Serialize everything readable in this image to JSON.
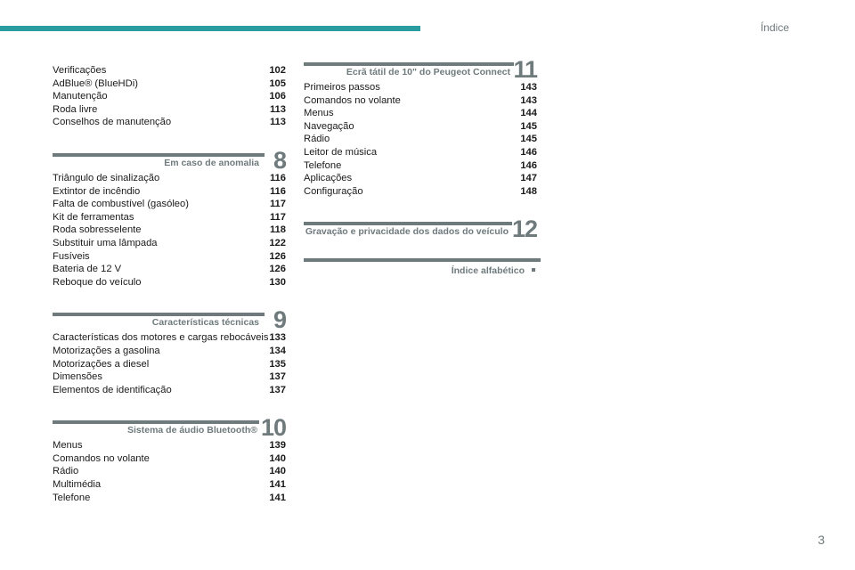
{
  "header": {
    "title": "Índice"
  },
  "page_number": "3",
  "left_top": [
    {
      "label": "Verificações",
      "page": "102"
    },
    {
      "label": "AdBlue® (BlueHDi)",
      "page": "105"
    },
    {
      "label": "Manutenção",
      "page": "106"
    },
    {
      "label": "Roda livre",
      "page": "113"
    },
    {
      "label": "Conselhos de manutenção",
      "page": "113"
    }
  ],
  "sections": [
    {
      "number": "8",
      "title": "Em caso de anomalia",
      "items": [
        {
          "label": "Triângulo de sinalização",
          "page": "116"
        },
        {
          "label": "Extintor de incêndio",
          "page": "116"
        },
        {
          "label": "Falta de combustível (gasóleo)",
          "page": "117"
        },
        {
          "label": "Kit de ferramentas",
          "page": "117"
        },
        {
          "label": "Roda sobresselente",
          "page": "118"
        },
        {
          "label": "Substituir uma lâmpada",
          "page": "122"
        },
        {
          "label": "Fusíveis",
          "page": "126"
        },
        {
          "label": "Bateria de 12 V",
          "page": "126"
        },
        {
          "label": "Reboque do veículo",
          "page": "130"
        }
      ]
    },
    {
      "number": "9",
      "title": "Características técnicas",
      "items": [
        {
          "label": "Características dos motores e cargas rebocáveis",
          "page": "133"
        },
        {
          "label": "Motorizações a gasolina",
          "page": "134"
        },
        {
          "label": "Motorizações a diesel",
          "page": "135"
        },
        {
          "label": "Dimensões",
          "page": "137"
        },
        {
          "label": "Elementos de identificação",
          "page": "137"
        }
      ]
    },
    {
      "number": "10",
      "title": "Sistema de áudio Bluetooth®",
      "items": [
        {
          "label": "Menus",
          "page": "139"
        },
        {
          "label": "Comandos no volante",
          "page": "140"
        },
        {
          "label": "Rádio",
          "page": "140"
        },
        {
          "label": "Multimédia",
          "page": "141"
        },
        {
          "label": "Telefone",
          "page": "141"
        }
      ]
    },
    {
      "number": "11",
      "title": "Ecrã tátil de 10\" do Peugeot Connect",
      "items": [
        {
          "label": "Primeiros passos",
          "page": "143"
        },
        {
          "label": "Comandos no volante",
          "page": "143"
        },
        {
          "label": "Menus",
          "page": "144"
        },
        {
          "label": "Navegação",
          "page": "145"
        },
        {
          "label": "Rádio",
          "page": "145"
        },
        {
          "label": "Leitor de música",
          "page": "146"
        },
        {
          "label": "Telefone",
          "page": "146"
        },
        {
          "label": "Aplicações",
          "page": "147"
        },
        {
          "label": "Configuração",
          "page": "148"
        }
      ]
    },
    {
      "number": "12",
      "title": "Gravação e privacidade dos dados do veículo",
      "items": []
    }
  ],
  "alpha_index": {
    "title": "Índice alfabético"
  },
  "colors": {
    "accent": "#2b9da0",
    "section_gray": "#6f7a7c"
  }
}
